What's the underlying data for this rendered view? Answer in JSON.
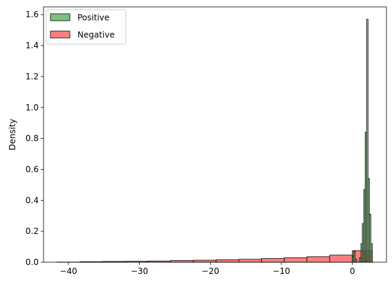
{
  "chart_data": {
    "type": "histogram",
    "title": "",
    "xlabel": "",
    "ylabel": "Density",
    "xlim": [
      -43.5,
      4.8
    ],
    "ylim": [
      0,
      1.65
    ],
    "xticks": [
      -40,
      -30,
      -20,
      -10,
      0
    ],
    "xtick_labels": [
      "−40",
      "−30",
      "−20",
      "−10",
      "0"
    ],
    "yticks": [
      0.0,
      0.2,
      0.4,
      0.6,
      0.8,
      1.0,
      1.2,
      1.4,
      1.6
    ],
    "ytick_labels": [
      "0.0",
      "0.2",
      "0.4",
      "0.6",
      "0.8",
      "1.0",
      "1.2",
      "1.4",
      "1.6"
    ],
    "grid": false,
    "legend_position": "top-left",
    "series": [
      {
        "name": "Negative",
        "color": "#ff7f7f",
        "edge_color": "#000000",
        "bins": [
          {
            "x0": -41.6,
            "x1": -38.4,
            "y": 0.001
          },
          {
            "x0": -38.4,
            "x1": -35.2,
            "y": 0.003
          },
          {
            "x0": -35.2,
            "x1": -32.0,
            "y": 0.005
          },
          {
            "x0": -32.0,
            "x1": -28.8,
            "y": 0.006
          },
          {
            "x0": -28.8,
            "x1": -25.6,
            "y": 0.008
          },
          {
            "x0": -25.6,
            "x1": -22.4,
            "y": 0.011
          },
          {
            "x0": -22.4,
            "x1": -19.2,
            "y": 0.013
          },
          {
            "x0": -19.2,
            "x1": -16.0,
            "y": 0.016
          },
          {
            "x0": -16.0,
            "x1": -12.8,
            "y": 0.019
          },
          {
            "x0": -12.8,
            "x1": -9.6,
            "y": 0.024
          },
          {
            "x0": -9.6,
            "x1": -6.4,
            "y": 0.029
          },
          {
            "x0": -6.4,
            "x1": -3.2,
            "y": 0.036
          },
          {
            "x0": -3.2,
            "x1": 0.0,
            "y": 0.046
          },
          {
            "x0": 0.0,
            "x1": 2.8,
            "y": 0.075
          }
        ]
      },
      {
        "name": "Positive",
        "color": "#7fbf7f",
        "edge_color": "#000000",
        "bins": [
          {
            "x0": 0.0,
            "x1": 0.2,
            "y": 0.04
          },
          {
            "x0": 0.2,
            "x1": 0.4,
            "y": 0.07
          },
          {
            "x0": 0.4,
            "x1": 0.6,
            "y": 0.02
          },
          {
            "x0": 1.0,
            "x1": 1.2,
            "y": 0.03
          },
          {
            "x0": 1.2,
            "x1": 1.4,
            "y": 0.12
          },
          {
            "x0": 1.4,
            "x1": 1.6,
            "y": 0.25
          },
          {
            "x0": 1.6,
            "x1": 1.8,
            "y": 0.47
          },
          {
            "x0": 1.8,
            "x1": 2.0,
            "y": 0.84
          },
          {
            "x0": 2.0,
            "x1": 2.2,
            "y": 1.57
          },
          {
            "x0": 2.2,
            "x1": 2.4,
            "y": 0.54
          },
          {
            "x0": 2.4,
            "x1": 2.6,
            "y": 0.31
          },
          {
            "x0": 2.6,
            "x1": 2.8,
            "y": 0.12
          }
        ]
      }
    ]
  }
}
